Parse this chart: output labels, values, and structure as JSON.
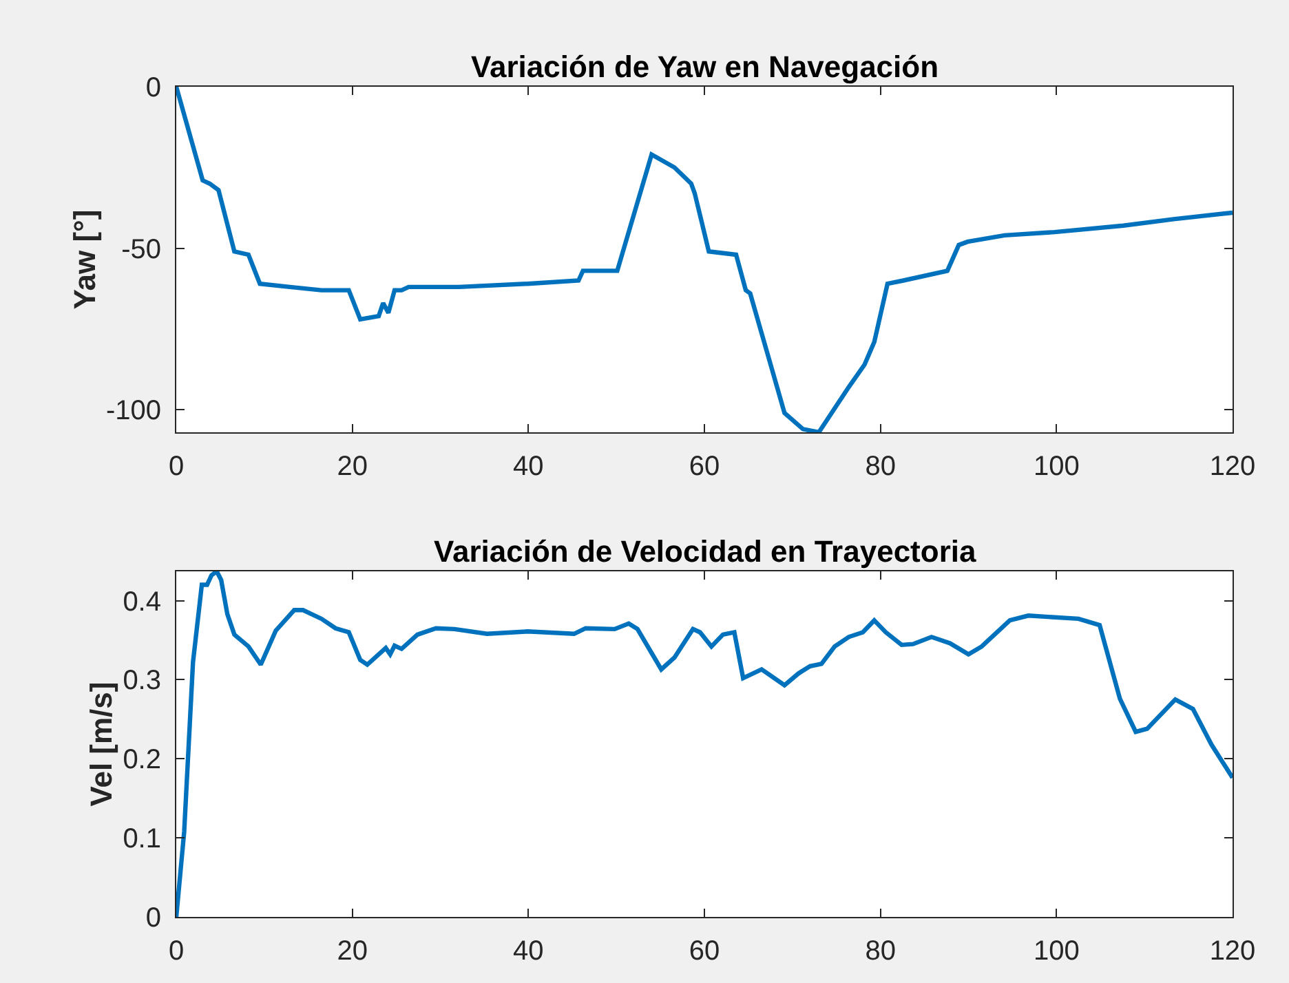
{
  "chart_data": [
    {
      "type": "line",
      "title": "Variación de Yaw en Navegación",
      "ylabel": "Yaw [°]",
      "x": [
        0,
        3.0,
        3.8,
        4.8,
        6.6,
        8.2,
        9.5,
        12.9,
        16.5,
        19.6,
        20.9,
        23.0,
        23.5,
        24.1,
        24.8,
        25.6,
        26.4,
        32.1,
        39.9,
        45.7,
        46.2,
        50.1,
        54.0,
        56.6,
        58.5,
        58.9,
        60.5,
        63.6,
        64.7,
        65.2,
        69.1,
        71.2,
        73.0,
        76.4,
        78.2,
        79.3,
        80.8,
        82.6,
        87.6,
        88.9,
        89.9,
        94.1,
        99.8,
        107.6,
        113.3,
        120
      ],
      "series": [
        {
          "color": "#0072bd",
          "values": [
            0,
            -29,
            -30,
            -32,
            -51,
            -52,
            -61,
            -62,
            -63,
            -63,
            -72,
            -71,
            -67,
            -70,
            -63,
            -63,
            -62,
            -62,
            -61,
            -60,
            -57,
            -57,
            -21,
            -25,
            -30,
            -33,
            -51,
            -52,
            -63,
            -64,
            -101,
            -106,
            -107,
            -93,
            -86,
            -79,
            -61,
            -60,
            -57,
            -49,
            -48,
            -46,
            -45,
            -43,
            -41,
            -39
          ]
        }
      ],
      "xlim": [
        0,
        120
      ],
      "xticks": [
        0,
        20,
        40,
        60,
        80,
        100,
        120
      ],
      "ylim": [
        -107,
        0
      ],
      "yticks": [
        -100,
        -50,
        0
      ],
      "grid": false,
      "marker": "none",
      "line_style": "solid"
    },
    {
      "type": "line",
      "title": "Variación de Velocidad en Trayectoria",
      "ylabel": "Vel [m/s]",
      "x": [
        0,
        0.9,
        1.9,
        2.9,
        3.5,
        4.0,
        4.6,
        5.1,
        5.8,
        6.6,
        8.2,
        9.6,
        11.3,
        13.4,
        14.4,
        16.5,
        18.1,
        19.6,
        20.9,
        21.7,
        23.8,
        24.3,
        24.8,
        25.6,
        27.4,
        29.5,
        31.6,
        35.3,
        39.9,
        45.2,
        46.5,
        49.8,
        51.4,
        52.4,
        55.1,
        56.6,
        58.7,
        59.5,
        60.8,
        62.1,
        63.4,
        64.4,
        66.5,
        69.1,
        70.7,
        72.0,
        73.3,
        74.8,
        76.4,
        78.0,
        79.3,
        80.6,
        82.4,
        83.7,
        85.8,
        87.9,
        90.0,
        91.5,
        94.7,
        96.8,
        102.5,
        104.9,
        107.2,
        109.0,
        110.3,
        113.5,
        115.5,
        117.6,
        120
      ],
      "series": [
        {
          "color": "#0072bd",
          "values": [
            0,
            0.108,
            0.322,
            0.42,
            0.42,
            0.432,
            0.437,
            0.426,
            0.383,
            0.357,
            0.342,
            0.319,
            0.362,
            0.388,
            0.388,
            0.377,
            0.365,
            0.36,
            0.325,
            0.319,
            0.34,
            0.332,
            0.343,
            0.339,
            0.357,
            0.365,
            0.364,
            0.358,
            0.361,
            0.358,
            0.365,
            0.364,
            0.371,
            0.364,
            0.313,
            0.328,
            0.364,
            0.36,
            0.342,
            0.357,
            0.36,
            0.302,
            0.313,
            0.293,
            0.308,
            0.317,
            0.32,
            0.342,
            0.354,
            0.36,
            0.375,
            0.36,
            0.344,
            0.345,
            0.354,
            0.346,
            0.332,
            0.342,
            0.375,
            0.381,
            0.377,
            0.369,
            0.276,
            0.234,
            0.238,
            0.275,
            0.263,
            0.218,
            0.176
          ]
        }
      ],
      "xlim": [
        0,
        120
      ],
      "xticks": [
        0,
        20,
        40,
        60,
        80,
        100,
        120
      ],
      "ylim": [
        0,
        0.437
      ],
      "yticks": [
        0,
        0.1,
        0.2,
        0.3,
        0.4
      ],
      "grid": false,
      "marker": "none",
      "line_style": "solid"
    }
  ]
}
